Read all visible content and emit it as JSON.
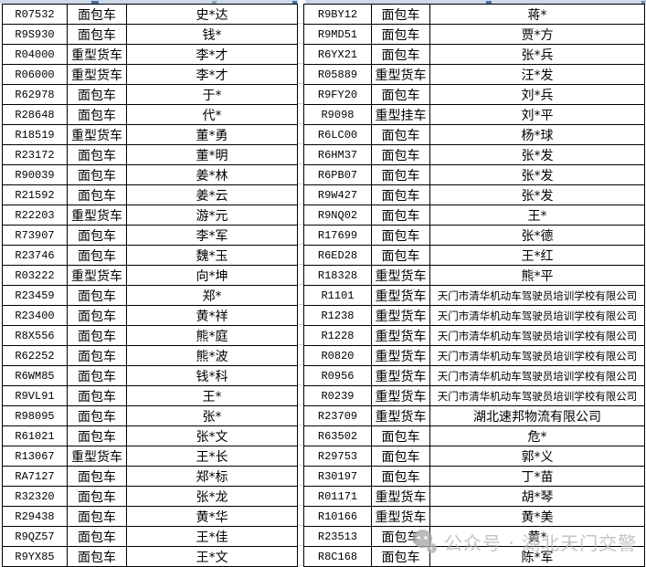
{
  "tables": {
    "left": {
      "rows": [
        {
          "plate": "R07532",
          "type": "面包车",
          "owner": "史*达"
        },
        {
          "plate": "R9S930",
          "type": "面包车",
          "owner": "钱*"
        },
        {
          "plate": "R04000",
          "type": "重型货车",
          "owner": "李*才"
        },
        {
          "plate": "R06000",
          "type": "重型货车",
          "owner": "李*才"
        },
        {
          "plate": "R62978",
          "type": "面包车",
          "owner": "于*"
        },
        {
          "plate": "R28648",
          "type": "面包车",
          "owner": "代*"
        },
        {
          "plate": "R18519",
          "type": "重型货车",
          "owner": "董*勇"
        },
        {
          "plate": "R23172",
          "type": "面包车",
          "owner": "董*明"
        },
        {
          "plate": "R90039",
          "type": "面包车",
          "owner": "姜*林"
        },
        {
          "plate": "R21592",
          "type": "面包车",
          "owner": "姜*云"
        },
        {
          "plate": "R22203",
          "type": "重型货车",
          "owner": "游*元"
        },
        {
          "plate": "R73907",
          "type": "面包车",
          "owner": "李*军"
        },
        {
          "plate": "R23746",
          "type": "面包车",
          "owner": "魏*玉"
        },
        {
          "plate": "R03222",
          "type": "重型货车",
          "owner": "向*坤"
        },
        {
          "plate": "R23459",
          "type": "面包车",
          "owner": "郑*"
        },
        {
          "plate": "R23400",
          "type": "面包车",
          "owner": "黄*祥"
        },
        {
          "plate": "R8X556",
          "type": "面包车",
          "owner": "熊*庭"
        },
        {
          "plate": "R62252",
          "type": "面包车",
          "owner": "熊*波"
        },
        {
          "plate": "R6WM85",
          "type": "面包车",
          "owner": "钱*科"
        },
        {
          "plate": "R9VL91",
          "type": "面包车",
          "owner": "王*"
        },
        {
          "plate": "R98095",
          "type": "面包车",
          "owner": "张*"
        },
        {
          "plate": "R61021",
          "type": "面包车",
          "owner": "张*文"
        },
        {
          "plate": "R13067",
          "type": "重型货车",
          "owner": "王*长"
        },
        {
          "plate": "RA7127",
          "type": "面包车",
          "owner": "郑*标"
        },
        {
          "plate": "R32320",
          "type": "面包车",
          "owner": "张*龙"
        },
        {
          "plate": "R29438",
          "type": "面包车",
          "owner": "黄*华"
        },
        {
          "plate": "R9QZ57",
          "type": "面包车",
          "owner": "王*佳"
        },
        {
          "plate": "R9YX85",
          "type": "面包车",
          "owner": "王*文"
        }
      ]
    },
    "right": {
      "rows": [
        {
          "plate": "R9BY12",
          "type": "面包车",
          "owner": "蒋*"
        },
        {
          "plate": "R9MD51",
          "type": "面包车",
          "owner": "贾*方"
        },
        {
          "plate": "R6YX21",
          "type": "面包车",
          "owner": "张*兵"
        },
        {
          "plate": "R05889",
          "type": "重型货车",
          "owner": "汪*发"
        },
        {
          "plate": "R9FY20",
          "type": "面包车",
          "owner": "刘*兵"
        },
        {
          "plate": "R9098",
          "type": "重型挂车",
          "owner": "刘*平"
        },
        {
          "plate": "R6LC00",
          "type": "面包车",
          "owner": "杨*球"
        },
        {
          "plate": "R6HM37",
          "type": "面包车",
          "owner": "张*发"
        },
        {
          "plate": "R6PB07",
          "type": "面包车",
          "owner": "张*发"
        },
        {
          "plate": "R9W427",
          "type": "面包车",
          "owner": "张*发"
        },
        {
          "plate": "R9NQ02",
          "type": "面包车",
          "owner": "王*"
        },
        {
          "plate": "R17699",
          "type": "面包车",
          "owner": "张*德"
        },
        {
          "plate": "R6ED28",
          "type": "面包车",
          "owner": "王*红"
        },
        {
          "plate": "R18328",
          "type": "重型货车",
          "owner": "熊*平"
        },
        {
          "plate": "R1101",
          "type": "重型货车",
          "owner": "天门市清华机动车驾驶员培训学校有限公司"
        },
        {
          "plate": "R1238",
          "type": "重型货车",
          "owner": "天门市清华机动车驾驶员培训学校有限公司"
        },
        {
          "plate": "R1228",
          "type": "重型货车",
          "owner": "天门市清华机动车驾驶员培训学校有限公司"
        },
        {
          "plate": "R0820",
          "type": "重型货车",
          "owner": "天门市清华机动车驾驶员培训学校有限公司"
        },
        {
          "plate": "R0956",
          "type": "重型货车",
          "owner": "天门市清华机动车驾驶员培训学校有限公司"
        },
        {
          "plate": "R0239",
          "type": "重型货车",
          "owner": "天门市清华机动车驾驶员培训学校有限公司"
        },
        {
          "plate": "R23709",
          "type": "重型货车",
          "owner": "湖北速邦物流有限公司"
        },
        {
          "plate": "R63502",
          "type": "面包车",
          "owner": "危*"
        },
        {
          "plate": "R29753",
          "type": "面包车",
          "owner": "郭*义"
        },
        {
          "plate": "R30197",
          "type": "面包车",
          "owner": "丁*苗"
        },
        {
          "plate": "R01171",
          "type": "重型货车",
          "owner": "胡*琴"
        },
        {
          "plate": "R10166",
          "type": "重型货车",
          "owner": "黄*美"
        },
        {
          "plate": "R23513",
          "type": "面包车",
          "owner": "黄*"
        },
        {
          "plate": "R8C168",
          "type": "面包车",
          "owner": "陈*军"
        }
      ]
    }
  },
  "watermark": {
    "text": "公众号 · 湖北天门交警",
    "icon": "wechat-official-account-logo"
  },
  "colors": {
    "grid_border": "#000000",
    "cell_background": "#ffffff",
    "top_strip": "#ccd9ea",
    "gap_gridline": "#ccd6e6",
    "watermark_gray": "#b5b5b5"
  }
}
